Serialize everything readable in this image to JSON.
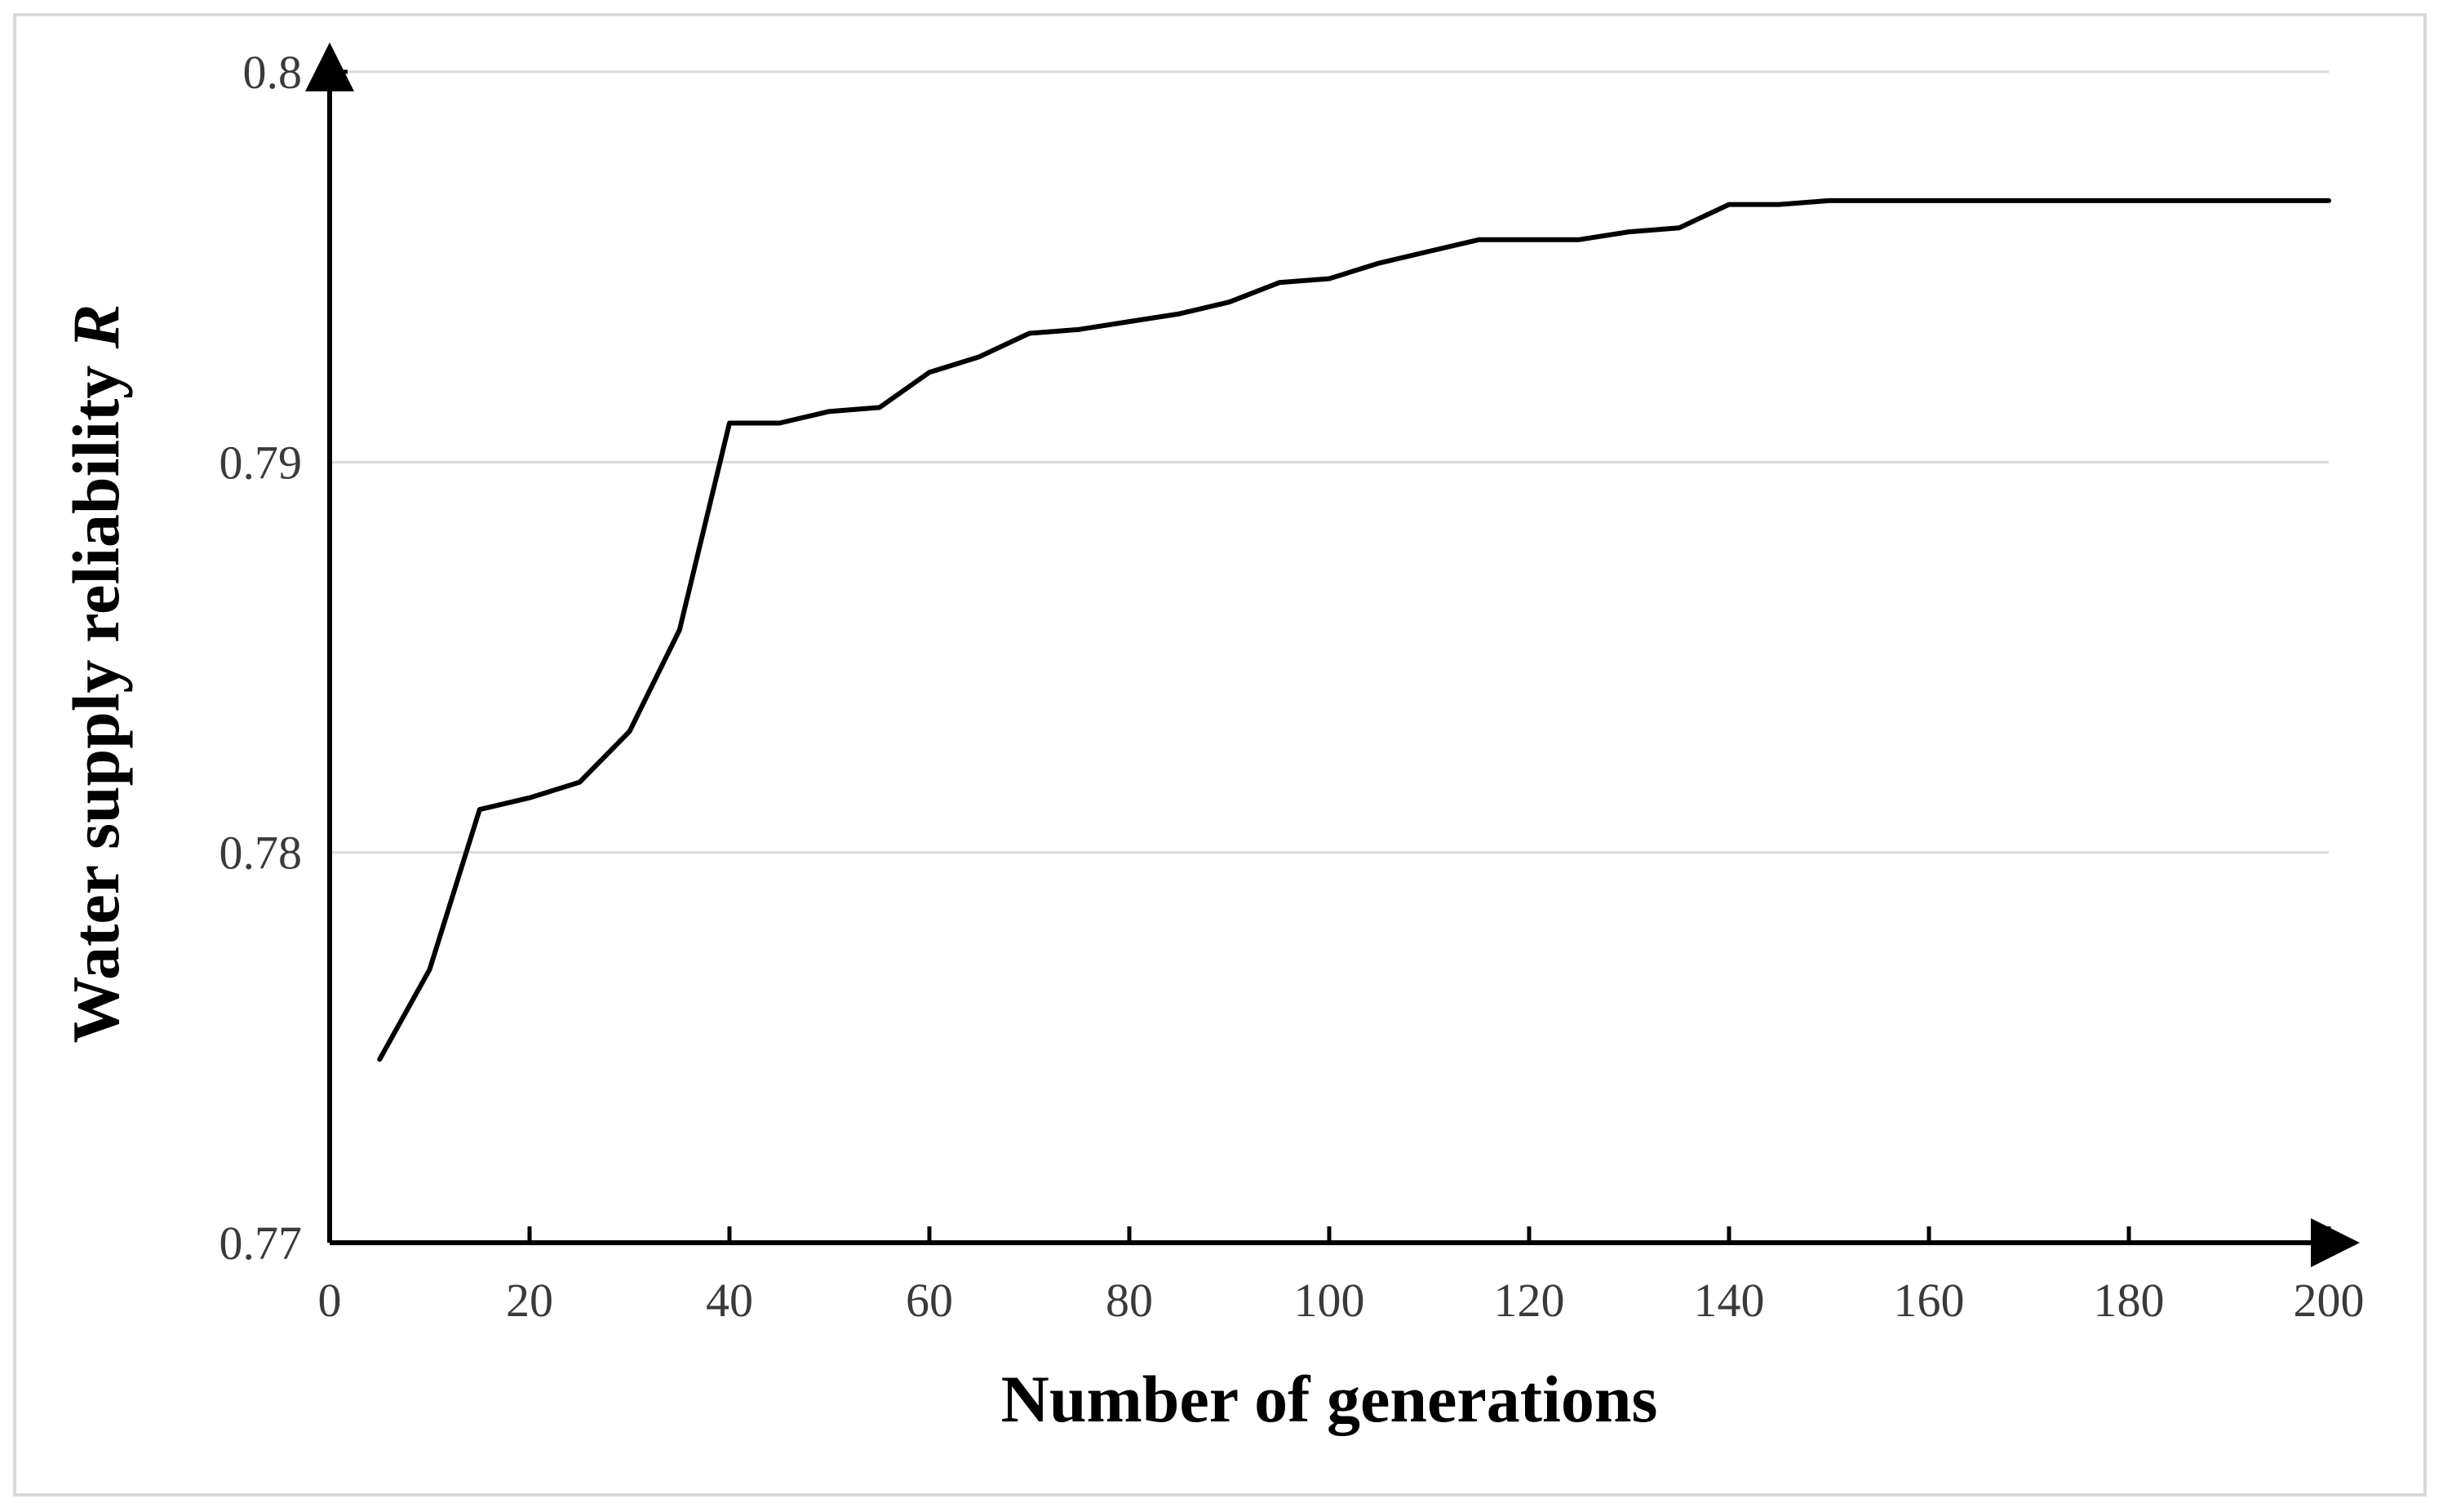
{
  "chart_data": {
    "type": "line",
    "title": "",
    "xlabel": "Number of generations",
    "ylabel": "Water supply reliability ",
    "ylabel_var": "R",
    "xlim": [
      0,
      200
    ],
    "ylim": [
      0.77,
      0.8
    ],
    "x_ticks": [
      0,
      20,
      40,
      60,
      80,
      100,
      120,
      140,
      160,
      180,
      200
    ],
    "y_ticks": [
      0.77,
      0.78,
      0.79,
      0.8
    ],
    "x_tick_labels": [
      "0",
      "20",
      "40",
      "60",
      "80",
      "100",
      "120",
      "140",
      "160",
      "180",
      "200"
    ],
    "y_tick_labels": [
      "0.77",
      "0.78",
      "0.79",
      "0.8"
    ],
    "grid": "horizontal",
    "line_color": "#000000",
    "grid_color": "#d9d9d9",
    "series": [
      {
        "x": [
          5,
          10,
          15,
          20,
          25,
          30,
          35,
          40,
          45,
          50,
          55,
          60,
          65,
          70,
          75,
          80,
          85,
          90,
          95,
          100,
          105,
          110,
          115,
          120,
          125,
          130,
          135,
          140,
          145,
          150,
          155,
          160,
          165,
          170,
          175,
          180,
          185,
          190,
          195,
          200
        ],
        "values": [
          0.7747,
          0.777,
          0.7811,
          0.7814,
          0.7818,
          0.7831,
          0.7857,
          0.791,
          0.791,
          0.7913,
          0.7914,
          0.7923,
          0.7927,
          0.7933,
          0.7934,
          0.7936,
          0.7938,
          0.7941,
          0.7946,
          0.7947,
          0.7951,
          0.7954,
          0.7957,
          0.7957,
          0.7957,
          0.7959,
          0.796,
          0.7966,
          0.7966,
          0.7967,
          0.7967,
          0.7967,
          0.7967,
          0.7967,
          0.7967,
          0.7967,
          0.7967,
          0.7967,
          0.7967,
          0.7967
        ]
      }
    ]
  }
}
